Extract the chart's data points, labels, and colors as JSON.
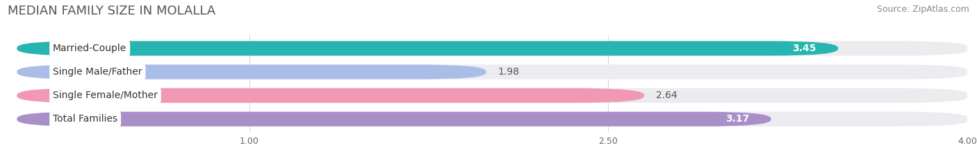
{
  "title": "MEDIAN FAMILY SIZE IN MOLALLA",
  "source": "Source: ZipAtlas.com",
  "categories": [
    "Married-Couple",
    "Single Male/Father",
    "Single Female/Mother",
    "Total Families"
  ],
  "values": [
    3.45,
    1.98,
    2.64,
    3.17
  ],
  "bar_colors": [
    "#26b5b0",
    "#aabde6",
    "#f098b4",
    "#a98fc8"
  ],
  "bar_bg_color": "#ebebf0",
  "xlim": [
    0,
    4.0
  ],
  "xmin": 0,
  "xmax": 4.0,
  "xticks": [
    1.0,
    2.5,
    4.0
  ],
  "title_fontsize": 13,
  "source_fontsize": 9,
  "bar_label_fontsize": 10,
  "category_fontsize": 10,
  "background_color": "#ffffff",
  "value_inside_threshold": 3.0,
  "value_inside_color": "#ffffff",
  "value_outside_color": "#555555"
}
